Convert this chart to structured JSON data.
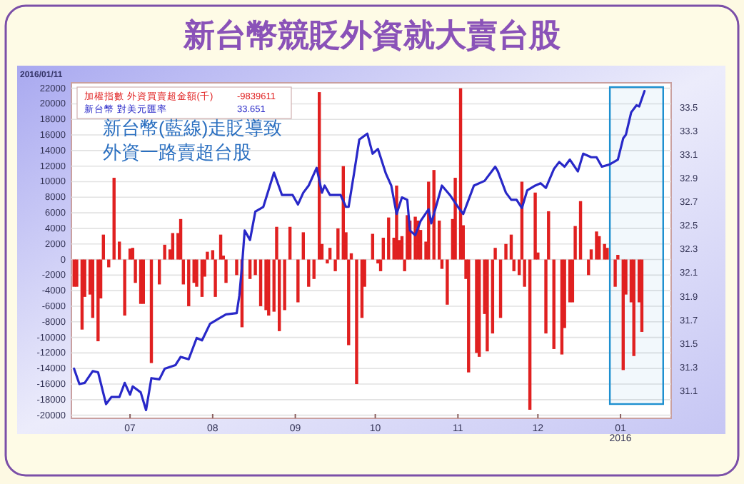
{
  "chart_data": {
    "type": "bar",
    "title": "新台幣競貶外資就大賣台股",
    "subtitle": "2016/01/11",
    "annotations": [
      "-9839611",
      "33.651",
      "新台幣(藍線)走貶導致",
      "外資一路賣超台股"
    ],
    "legend": "top left",
    "grid": "y",
    "xlim": [
      "2015-06-09",
      "2016-01-20"
    ],
    "xticks": [
      {
        "value": "2015-07-01",
        "label": "07"
      },
      {
        "value": "2015-08-01",
        "label": "08"
      },
      {
        "value": "2015-09-01",
        "label": "09"
      },
      {
        "value": "2015-10-01",
        "label": "10"
      },
      {
        "value": "2015-11-01",
        "label": "11"
      },
      {
        "value": "2015-12-01",
        "label": "12"
      },
      {
        "value": "2016-01-01",
        "label": "01\n2016"
      }
    ],
    "ylim": [
      -20400,
      22700
    ],
    "yticks": [
      -20000,
      -18000,
      -16000,
      -14000,
      -12000,
      -10000,
      -8000,
      -6000,
      -4000,
      -2000,
      0,
      2000,
      4000,
      6000,
      8000,
      10000,
      12000,
      14000,
      16000,
      18000,
      20000,
      22000
    ],
    "y2lim": [
      30.87,
      33.71
    ],
    "y2ticks": [
      31.1,
      31.3,
      31.5,
      31.7,
      31.9,
      32.1,
      32.3,
      32.5,
      32.7,
      32.9,
      33.1,
      33.3,
      33.5
    ],
    "bands": [
      {
        "axis": "x",
        "from": "2015-12-28",
        "to": "2016-01-17",
        "color": "#1e90d0"
      }
    ],
    "series": [
      {
        "name": "加權指數 外資買賣超金額(千)",
        "color": "#e02020",
        "x": [
          "2015-06-10",
          "2015-06-11",
          "2015-06-13",
          "2015-06-14",
          "2015-06-16",
          "2015-06-17",
          "2015-06-19",
          "2015-06-20",
          "2015-06-21",
          "2015-06-23",
          "2015-06-25",
          "2015-06-27",
          "2015-06-29",
          "2015-07-01",
          "2015-07-02",
          "2015-07-03",
          "2015-07-05",
          "2015-07-06",
          "2015-07-09",
          "2015-07-12",
          "2015-07-14",
          "2015-07-16",
          "2015-07-17",
          "2015-07-19",
          "2015-07-20",
          "2015-07-21",
          "2015-07-23",
          "2015-07-25",
          "2015-07-26",
          "2015-07-28",
          "2015-07-29",
          "2015-07-30",
          "2015-08-01",
          "2015-08-02",
          "2015-08-04",
          "2015-08-05",
          "2015-08-06",
          "2015-08-10",
          "2015-08-12",
          "2015-08-15",
          "2015-08-17",
          "2015-08-19",
          "2015-08-21",
          "2015-08-22",
          "2015-08-24",
          "2015-08-25",
          "2015-08-26",
          "2015-08-28",
          "2015-08-30",
          "2015-09-02",
          "2015-09-04",
          "2015-09-06",
          "2015-09-08",
          "2015-09-10",
          "2015-09-11",
          "2015-09-13",
          "2015-09-14",
          "2015-09-16",
          "2015-09-17",
          "2015-09-19",
          "2015-09-20",
          "2015-09-21",
          "2015-09-22",
          "2015-09-24",
          "2015-09-26",
          "2015-09-27",
          "2015-09-30",
          "2015-10-02",
          "2015-10-03",
          "2015-10-04",
          "2015-10-06",
          "2015-10-08",
          "2015-10-09",
          "2015-10-10",
          "2015-10-11",
          "2015-10-12",
          "2015-10-13",
          "2015-10-14",
          "2015-10-16",
          "2015-10-17",
          "2015-10-18",
          "2015-10-20",
          "2015-10-21",
          "2015-10-23",
          "2015-10-25",
          "2015-10-26",
          "2015-10-28",
          "2015-10-30",
          "2015-10-31",
          "2015-11-02",
          "2015-11-03",
          "2015-11-04",
          "2015-11-05",
          "2015-11-08",
          "2015-11-09",
          "2015-11-11",
          "2015-11-12",
          "2015-11-14",
          "2015-11-15",
          "2015-11-17",
          "2015-11-19",
          "2015-11-21",
          "2015-11-22",
          "2015-11-24",
          "2015-11-25",
          "2015-11-26",
          "2015-11-28",
          "2015-11-30",
          "2015-12-01",
          "2015-12-04",
          "2015-12-05",
          "2015-12-07",
          "2015-12-10",
          "2015-12-11",
          "2015-12-13",
          "2015-12-14",
          "2015-12-15",
          "2015-12-17",
          "2015-12-20",
          "2015-12-21",
          "2015-12-23",
          "2015-12-24",
          "2015-12-26",
          "2015-12-27",
          "2015-12-30",
          "2015-12-31",
          "2016-01-02",
          "2016-01-03",
          "2016-01-05",
          "2016-01-06",
          "2016-01-08",
          "2016-01-09"
        ],
        "values": [
          -3500,
          -3500,
          -9000,
          -4800,
          -4500,
          -7500,
          -10500,
          -5000,
          3200,
          -1000,
          10500,
          2300,
          -7200,
          1400,
          1500,
          -3000,
          -5700,
          -5700,
          -13300,
          -3200,
          1900,
          1300,
          3400,
          3400,
          5200,
          -3200,
          -6000,
          -3000,
          -3500,
          -4800,
          -2200,
          1000,
          1200,
          -4800,
          3200,
          500,
          -3000,
          -2000,
          -8700,
          -2500,
          -2000,
          -6000,
          -6500,
          -7200,
          -6700,
          4200,
          -9200,
          -6500,
          4200,
          -5500,
          3500,
          -3500,
          -2500,
          21500,
          2000,
          -500,
          1500,
          -1500,
          4000,
          12000,
          3500,
          -11000,
          800,
          -16000,
          -7500,
          -3500,
          3300,
          -500,
          -1500,
          2800,
          5400,
          2800,
          9500,
          2500,
          3000,
          -1500,
          5700,
          5000,
          5500,
          5000,
          3800,
          2300,
          10000,
          11500,
          5000,
          -1200,
          -5800,
          5200,
          10500,
          22000,
          4400,
          -2500,
          -14500,
          -12000,
          -12500,
          -7000,
          -11800,
          -9500,
          1500,
          -7500,
          2000,
          3200,
          -1500,
          -2000,
          10000,
          -3500,
          -19300,
          8600,
          900,
          -9500,
          6200,
          -11500,
          -12200,
          -8800,
          -5500,
          -5500,
          4300,
          7500,
          -2000,
          1300,
          3600,
          3000,
          2000,
          1500,
          -3500,
          600,
          -14200,
          -4500,
          -5500,
          -12400,
          -5500,
          -9300
        ]
      },
      {
        "name": "新台幣 對美元匯率",
        "type": "line",
        "axis": "y2",
        "color": "#2828c8",
        "x": [
          "2015-06-10",
          "2015-06-12",
          "2015-06-14",
          "2015-06-17",
          "2015-06-19",
          "2015-06-22",
          "2015-06-24",
          "2015-06-27",
          "2015-06-29",
          "2015-07-01",
          "2015-07-02",
          "2015-07-05",
          "2015-07-07",
          "2015-07-09",
          "2015-07-12",
          "2015-07-14",
          "2015-07-18",
          "2015-07-20",
          "2015-07-23",
          "2015-07-26",
          "2015-07-28",
          "2015-07-31",
          "2015-08-03",
          "2015-08-06",
          "2015-08-10",
          "2015-08-11",
          "2015-08-12",
          "2015-08-13",
          "2015-08-15",
          "2015-08-17",
          "2015-08-20",
          "2015-08-24",
          "2015-08-27",
          "2015-08-31",
          "2015-09-02",
          "2015-09-04",
          "2015-09-06",
          "2015-09-09",
          "2015-09-11",
          "2015-09-12",
          "2015-09-14",
          "2015-09-18",
          "2015-09-20",
          "2015-09-21",
          "2015-09-23",
          "2015-09-25",
          "2015-09-28",
          "2015-09-30",
          "2015-10-02",
          "2015-10-05",
          "2015-10-07",
          "2015-10-09",
          "2015-10-11",
          "2015-10-13",
          "2015-10-14",
          "2015-10-16",
          "2015-10-18",
          "2015-10-21",
          "2015-10-22",
          "2015-10-24",
          "2015-10-26",
          "2015-10-29",
          "2015-11-01",
          "2015-11-03",
          "2015-11-06",
          "2015-11-07",
          "2015-11-11",
          "2015-11-15",
          "2015-11-16",
          "2015-11-19",
          "2015-11-21",
          "2015-11-23",
          "2015-11-25",
          "2015-11-27",
          "2015-11-30",
          "2015-12-02",
          "2015-12-04",
          "2015-12-07",
          "2015-12-09",
          "2015-12-11",
          "2015-12-13",
          "2015-12-16",
          "2015-12-18",
          "2015-12-21",
          "2015-12-23",
          "2015-12-25",
          "2015-12-28",
          "2015-12-31",
          "2016-01-02",
          "2016-01-03",
          "2016-01-05",
          "2016-01-07",
          "2016-01-08",
          "2016-01-10"
        ],
        "values": [
          31.29,
          31.16,
          31.17,
          31.27,
          31.26,
          30.99,
          31.05,
          31.05,
          31.17,
          31.07,
          31.14,
          31.09,
          30.94,
          31.21,
          31.2,
          31.29,
          31.32,
          31.39,
          31.37,
          31.55,
          31.53,
          31.67,
          31.71,
          31.75,
          31.76,
          31.91,
          32.16,
          32.46,
          32.38,
          32.62,
          32.66,
          32.95,
          32.76,
          32.76,
          32.68,
          32.78,
          32.84,
          32.99,
          32.78,
          32.84,
          32.76,
          32.76,
          32.66,
          32.66,
          32.94,
          33.23,
          33.28,
          33.11,
          33.15,
          32.94,
          32.84,
          32.6,
          32.74,
          32.72,
          32.46,
          32.42,
          32.54,
          32.64,
          32.52,
          32.68,
          32.84,
          32.76,
          32.66,
          32.6,
          32.78,
          32.84,
          32.88,
          33.0,
          32.96,
          32.78,
          32.72,
          32.72,
          32.65,
          32.8,
          32.84,
          32.86,
          32.82,
          32.98,
          33.04,
          33.0,
          33.06,
          32.96,
          33.11,
          33.08,
          33.08,
          33.0,
          33.02,
          33.06,
          33.24,
          33.27,
          33.46,
          33.52,
          33.51,
          33.64
        ]
      }
    ]
  }
}
